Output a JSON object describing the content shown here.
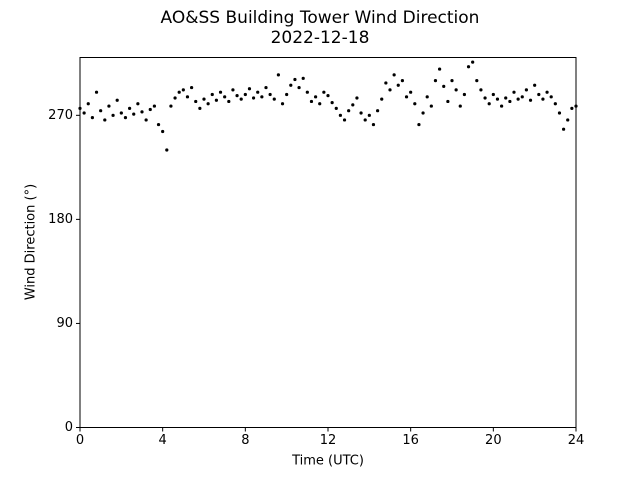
{
  "chart_data": {
    "type": "scatter",
    "title": "AO&SS Building Tower Wind Direction",
    "subtitle": "2022-12-18",
    "x_label": "Time (UTC)",
    "y_label": "Wind Direction (°)",
    "color": "#000000",
    "grid": false,
    "xlim": [
      0,
      24
    ],
    "ylim": [
      0,
      320
    ],
    "xticks": [
      0,
      4,
      8,
      12,
      16,
      20,
      24
    ],
    "yticks": [
      0,
      90,
      180,
      270
    ],
    "x": [
      0,
      0.2,
      0.4,
      0.6,
      0.8,
      1.0,
      1.2,
      1.4,
      1.6,
      1.8,
      2.0,
      2.2,
      2.4,
      2.6,
      2.8,
      3.0,
      3.2,
      3.4,
      3.6,
      3.8,
      4.0,
      4.2,
      4.4,
      4.6,
      4.8,
      5.0,
      5.2,
      5.4,
      5.6,
      5.8,
      6.0,
      6.2,
      6.4,
      6.6,
      6.8,
      7.0,
      7.2,
      7.4,
      7.6,
      7.8,
      8.0,
      8.2,
      8.4,
      8.6,
      8.8,
      9.0,
      9.2,
      9.4,
      9.6,
      9.8,
      10.0,
      10.2,
      10.4,
      10.6,
      10.8,
      11.0,
      11.2,
      11.4,
      11.6,
      11.8,
      12.0,
      12.2,
      12.4,
      12.6,
      12.8,
      13.0,
      13.2,
      13.4,
      13.6,
      13.8,
      14.0,
      14.2,
      14.4,
      14.6,
      14.8,
      15.0,
      15.2,
      15.4,
      15.6,
      15.8,
      16.0,
      16.2,
      16.4,
      16.6,
      16.8,
      17.0,
      17.2,
      17.4,
      17.6,
      17.8,
      18.0,
      18.2,
      18.4,
      18.6,
      18.8,
      19.0,
      19.2,
      19.4,
      19.6,
      19.8,
      20.0,
      20.2,
      20.4,
      20.6,
      20.8,
      21.0,
      21.2,
      21.4,
      21.6,
      21.8,
      22.0,
      22.2,
      22.4,
      22.6,
      22.8,
      23.0,
      23.2,
      23.4,
      23.6,
      23.8,
      24.0
    ],
    "values": [
      276,
      272,
      280,
      268,
      290,
      274,
      266,
      278,
      270,
      283,
      272,
      268,
      276,
      271,
      280,
      273,
      266,
      275,
      278,
      262,
      256,
      240,
      278,
      285,
      290,
      292,
      286,
      294,
      282,
      276,
      284,
      280,
      288,
      283,
      290,
      286,
      282,
      292,
      287,
      284,
      288,
      293,
      285,
      290,
      286,
      294,
      288,
      284,
      305,
      280,
      288,
      296,
      301,
      294,
      302,
      290,
      282,
      286,
      280,
      290,
      287,
      281,
      276,
      270,
      266,
      274,
      279,
      285,
      272,
      266,
      270,
      262,
      274,
      284,
      298,
      292,
      305,
      296,
      300,
      286,
      290,
      280,
      262,
      272,
      286,
      278,
      300,
      310,
      295,
      282,
      300,
      292,
      278,
      288,
      312,
      316,
      300,
      292,
      285,
      280,
      288,
      284,
      278,
      285,
      282,
      290,
      284,
      286,
      292,
      283,
      296,
      288,
      284,
      290,
      286,
      280,
      272,
      258,
      266,
      276,
      278
    ]
  }
}
